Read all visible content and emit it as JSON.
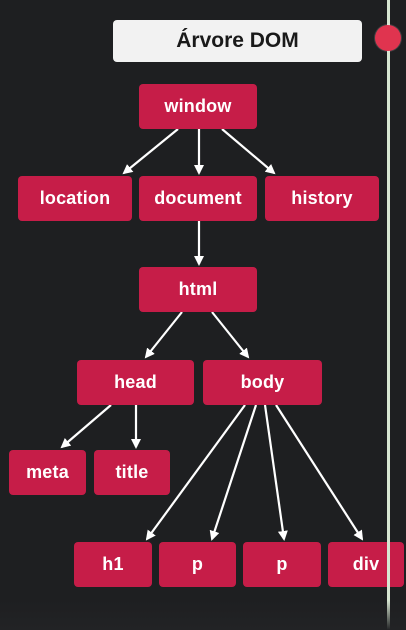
{
  "title": "Árvore DOM",
  "nodes": {
    "window": "window",
    "location": "location",
    "document": "document",
    "history": "history",
    "html": "html",
    "head": "head",
    "body": "body",
    "meta": "meta",
    "title_tag": "title",
    "h1": "h1",
    "p1": "p",
    "p2": "p",
    "div": "div"
  },
  "colors": {
    "node": "#c61d48",
    "background": "#1e1f21",
    "title_box": "#f2f2f2",
    "accent_dot": "#e0344f",
    "edge": "#ffffff"
  }
}
